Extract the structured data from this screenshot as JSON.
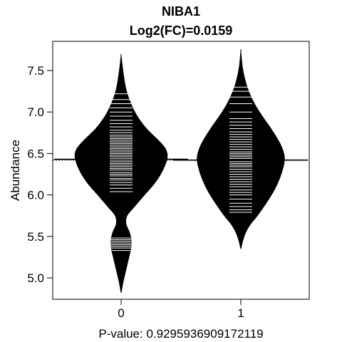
{
  "chart_data": {
    "type": "beanplot",
    "title": "NIBA1",
    "subtitle": "Log2(FC)=0.0159",
    "xlabel": "P-value: 0.9295936909172119",
    "ylabel": "Abundance",
    "categories": [
      "0",
      "1"
    ],
    "yticks": [
      "5.0",
      "5.5",
      "6.0",
      "6.5",
      "7.0",
      "7.5"
    ],
    "ylim": [
      4.75,
      7.8
    ],
    "overall_mean": 6.42,
    "groups": [
      {
        "name": "0",
        "mean": 6.43,
        "density_profile": [
          [
            4.82,
            0.0
          ],
          [
            4.95,
            0.04
          ],
          [
            5.1,
            0.1
          ],
          [
            5.25,
            0.16
          ],
          [
            5.35,
            0.2
          ],
          [
            5.45,
            0.21
          ],
          [
            5.55,
            0.17
          ],
          [
            5.65,
            0.1
          ],
          [
            5.75,
            0.12
          ],
          [
            5.85,
            0.26
          ],
          [
            6.0,
            0.48
          ],
          [
            6.15,
            0.7
          ],
          [
            6.3,
            0.86
          ],
          [
            6.45,
            0.95
          ],
          [
            6.55,
            0.92
          ],
          [
            6.65,
            0.78
          ],
          [
            6.8,
            0.52
          ],
          [
            6.95,
            0.33
          ],
          [
            7.1,
            0.2
          ],
          [
            7.25,
            0.11
          ],
          [
            7.4,
            0.06
          ],
          [
            7.55,
            0.025
          ],
          [
            7.68,
            0.0
          ]
        ],
        "values": [
          5.33,
          5.36,
          5.38,
          5.4,
          5.42,
          5.44,
          5.46,
          5.48,
          6.04,
          6.08,
          6.12,
          6.15,
          6.18,
          6.2,
          6.23,
          6.25,
          6.27,
          6.3,
          6.32,
          6.34,
          6.36,
          6.38,
          6.4,
          6.42,
          6.44,
          6.46,
          6.48,
          6.5,
          6.52,
          6.54,
          6.56,
          6.58,
          6.6,
          6.62,
          6.64,
          6.66,
          6.68,
          6.7,
          6.72,
          6.75,
          6.78,
          6.82,
          6.86,
          6.9,
          6.95,
          7.0,
          7.05,
          7.1,
          7.15,
          7.22
        ]
      },
      {
        "name": "1",
        "mean": 6.42,
        "density_profile": [
          [
            5.35,
            0.0
          ],
          [
            5.45,
            0.04
          ],
          [
            5.55,
            0.1
          ],
          [
            5.65,
            0.2
          ],
          [
            5.75,
            0.34
          ],
          [
            5.9,
            0.52
          ],
          [
            6.05,
            0.68
          ],
          [
            6.2,
            0.8
          ],
          [
            6.35,
            0.88
          ],
          [
            6.45,
            0.9
          ],
          [
            6.55,
            0.86
          ],
          [
            6.65,
            0.78
          ],
          [
            6.8,
            0.62
          ],
          [
            6.95,
            0.44
          ],
          [
            7.1,
            0.28
          ],
          [
            7.25,
            0.16
          ],
          [
            7.4,
            0.08
          ],
          [
            7.55,
            0.03
          ],
          [
            7.73,
            0.0
          ]
        ],
        "values": [
          5.79,
          5.82,
          5.86,
          5.9,
          5.95,
          6.0,
          6.03,
          6.06,
          6.1,
          6.13,
          6.16,
          6.19,
          6.22,
          6.25,
          6.28,
          6.31,
          6.34,
          6.36,
          6.38,
          6.4,
          6.42,
          6.44,
          6.46,
          6.48,
          6.5,
          6.52,
          6.55,
          6.58,
          6.61,
          6.64,
          6.67,
          6.7,
          6.73,
          6.76,
          6.8,
          6.84,
          6.88,
          6.92,
          7.0,
          7.1,
          7.18,
          7.25,
          7.3
        ]
      }
    ]
  }
}
